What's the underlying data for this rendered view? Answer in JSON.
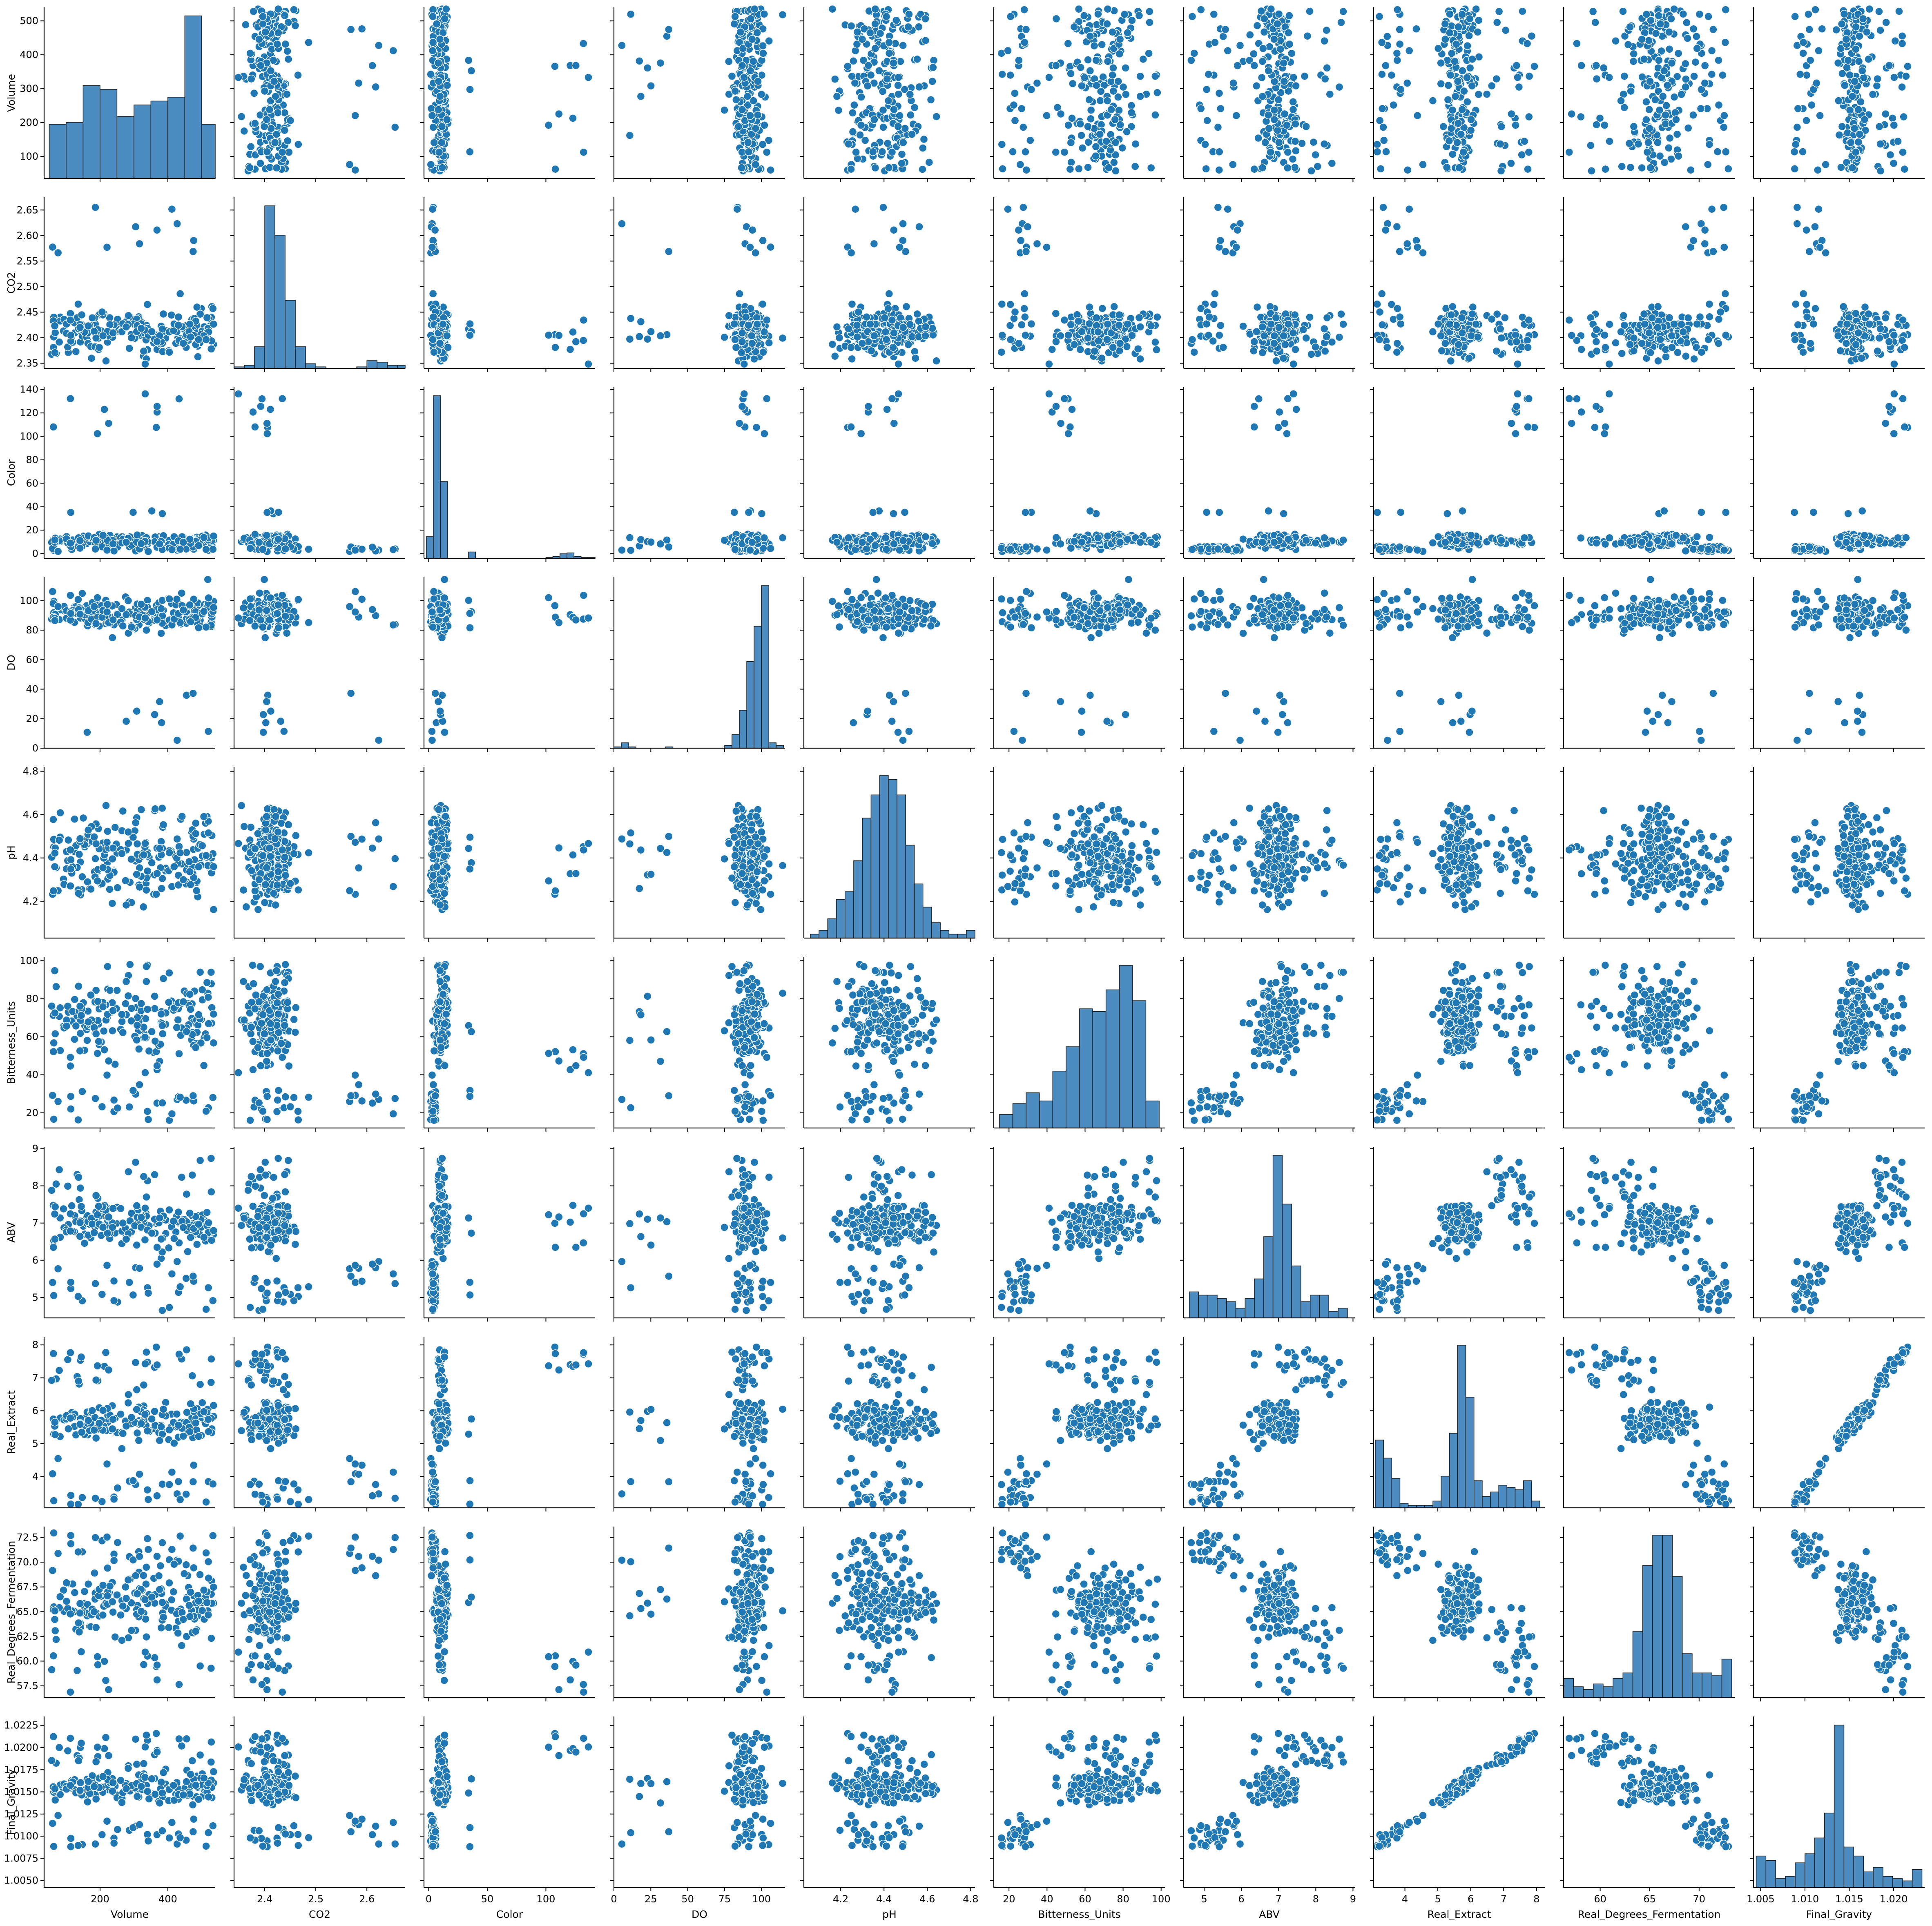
{
  "chart_data": {
    "type": "scatter",
    "subtype": "pairplot",
    "title": "",
    "point_color": "#1f77b4",
    "hist_color": "#4c8cc0",
    "variables": [
      "Volume",
      "CO2",
      "Color",
      "DO",
      "pH",
      "Bitterness_Units",
      "ABV",
      "Real_Extract",
      "Real_Degrees_Fermentation",
      "Final_Gravity"
    ],
    "axes": {
      "Volume": {
        "range": [
          35,
          540
        ],
        "ticks": [
          100,
          200,
          300,
          400,
          500
        ],
        "xticks": [
          200,
          400
        ],
        "tick_labels": [
          "100",
          "200",
          "300",
          "400",
          "500"
        ],
        "xtick_labels": [
          "200",
          "400"
        ]
      },
      "CO2": {
        "range": [
          2.34,
          2.675
        ],
        "ticks": [
          2.35,
          2.4,
          2.45,
          2.5,
          2.55,
          2.6,
          2.65
        ],
        "xticks": [
          2.4,
          2.5,
          2.6
        ],
        "tick_labels": [
          "2.35",
          "2.40",
          "2.45",
          "2.50",
          "2.55",
          "2.60",
          "2.65"
        ],
        "xtick_labels": [
          "2.4",
          "2.5",
          "2.6"
        ]
      },
      "Color": {
        "range": [
          -4,
          142
        ],
        "ticks": [
          0,
          20,
          40,
          60,
          80,
          100,
          120,
          140
        ],
        "xticks": [
          0,
          50,
          100
        ],
        "tick_labels": [
          "0",
          "20",
          "40",
          "60",
          "80",
          "100",
          "120",
          "140"
        ],
        "xtick_labels": [
          "0",
          "50",
          "100"
        ]
      },
      "DO": {
        "range": [
          0,
          116
        ],
        "ticks": [
          0,
          20,
          40,
          60,
          80,
          100
        ],
        "xticks": [
          0,
          25,
          50,
          75,
          100
        ],
        "tick_labels": [
          "0",
          "20",
          "40",
          "60",
          "80",
          "100"
        ],
        "xtick_labels": [
          "0",
          "25",
          "50",
          "75",
          "100"
        ]
      },
      "pH": {
        "range": [
          4.03,
          4.82
        ],
        "ticks": [
          4.2,
          4.4,
          4.6,
          4.8
        ],
        "xticks": [
          4.2,
          4.4,
          4.6,
          4.8
        ],
        "tick_labels": [
          "4.2",
          "4.4",
          "4.6",
          "4.8"
        ],
        "xtick_labels": [
          "4.2",
          "4.4",
          "4.6",
          "4.8"
        ]
      },
      "Bitterness_Units": {
        "range": [
          12,
          102
        ],
        "ticks": [
          20,
          40,
          60,
          80,
          100
        ],
        "xticks": [
          20,
          40,
          60,
          80,
          100
        ],
        "tick_labels": [
          "20",
          "40",
          "60",
          "80",
          "100"
        ],
        "xtick_labels": [
          "20",
          "40",
          "60",
          "80",
          "100"
        ]
      },
      "ABV": {
        "range": [
          4.45,
          9.05
        ],
        "ticks": [
          5,
          6,
          7,
          8,
          9
        ],
        "xticks": [
          5,
          6,
          7,
          8,
          9
        ],
        "tick_labels": [
          "5",
          "6",
          "7",
          "8",
          "9"
        ],
        "xtick_labels": [
          "5",
          "6",
          "7",
          "8",
          "9"
        ]
      },
      "Real_Extract": {
        "range": [
          3.05,
          8.25
        ],
        "ticks": [
          4,
          5,
          6,
          7,
          8
        ],
        "xticks": [
          4,
          5,
          6,
          7,
          8
        ],
        "tick_labels": [
          "4",
          "5",
          "6",
          "7",
          "8"
        ],
        "xtick_labels": [
          "4",
          "5",
          "6",
          "7",
          "8"
        ]
      },
      "Real_Degrees_Fermentation": {
        "range": [
          56.3,
          73.6
        ],
        "ticks": [
          57.5,
          60.0,
          62.5,
          65.0,
          67.5,
          70.0,
          72.5
        ],
        "xticks": [
          60,
          65,
          70
        ],
        "tick_labels": [
          "57.5",
          "60.0",
          "62.5",
          "65.0",
          "67.5",
          "70.0",
          "72.5"
        ],
        "xtick_labels": [
          "60",
          "65",
          "70"
        ]
      },
      "Final_Gravity": {
        "range": [
          1.0042,
          1.0235
        ],
        "ticks": [
          1.005,
          1.0075,
          1.01,
          1.0125,
          1.015,
          1.0175,
          1.02,
          1.0225
        ],
        "xticks": [
          1.005,
          1.01,
          1.015,
          1.02
        ],
        "tick_labels": [
          "1.0050",
          "1.0075",
          "1.0100",
          "1.0125",
          "1.0150",
          "1.0175",
          "1.0200",
          "1.0225"
        ],
        "xtick_labels": [
          "1.005",
          "1.010",
          "1.015",
          "1.020"
        ]
      }
    },
    "histograms": {
      "Volume": {
        "edges": [
          50,
          100,
          150,
          200,
          250,
          300,
          350,
          400,
          450,
          500,
          540
        ],
        "counts": [
          28,
          29,
          48,
          46,
          32,
          38,
          40,
          42,
          84,
          28
        ]
      },
      "CO2": {
        "edges": [
          2.34,
          2.36,
          2.38,
          2.4,
          2.42,
          2.44,
          2.46,
          2.48,
          2.5,
          2.52,
          2.54,
          2.56,
          2.58,
          2.6,
          2.62,
          2.64,
          2.66,
          2.675
        ],
        "counts": [
          1,
          2,
          14,
          105,
          86,
          44,
          14,
          3,
          1,
          0,
          0,
          0,
          1,
          5,
          4,
          2,
          2
        ]
      },
      "Color": {
        "edges": [
          -2,
          4,
          10,
          16,
          22,
          28,
          34,
          40,
          46,
          52,
          58,
          64,
          70,
          76,
          82,
          88,
          94,
          100,
          106,
          112,
          118,
          124,
          130,
          136,
          142
        ],
        "counts": [
          24,
          180,
          85,
          0,
          0,
          0,
          7,
          0,
          0,
          0,
          0,
          0,
          0,
          0,
          0,
          0,
          0,
          1,
          2,
          5,
          6,
          2,
          1,
          1
        ]
      },
      "DO": {
        "edges": [
          0,
          5,
          10,
          15,
          20,
          25,
          30,
          35,
          40,
          45,
          50,
          55,
          60,
          65,
          70,
          75,
          80,
          85,
          90,
          95,
          100,
          105,
          110,
          115
        ],
        "counts": [
          1,
          4,
          1,
          0,
          0,
          0,
          0,
          1,
          0,
          0,
          0,
          0,
          0,
          0,
          0,
          2,
          10,
          28,
          64,
          90,
          120,
          4,
          2
        ]
      },
      "pH": {
        "edges": [
          4.06,
          4.1,
          4.14,
          4.18,
          4.22,
          4.26,
          4.3,
          4.34,
          4.38,
          4.42,
          4.46,
          4.5,
          4.54,
          4.58,
          4.62,
          4.66,
          4.7,
          4.74,
          4.78,
          4.82
        ],
        "counts": [
          1,
          2,
          5,
          10,
          12,
          20,
          31,
          37,
          42,
          41,
          37,
          24,
          14,
          8,
          4,
          2,
          1,
          1,
          2
        ]
      },
      "Bitterness_Units": {
        "edges": [
          15,
          22,
          29,
          36,
          43,
          50,
          57,
          64,
          71,
          78,
          85,
          92,
          99
        ],
        "counts": [
          5,
          9,
          13,
          10,
          21,
          30,
          44,
          43,
          51,
          60,
          47,
          10
        ]
      },
      "ABV": {
        "edges": [
          4.6,
          4.85,
          5.1,
          5.35,
          5.6,
          5.85,
          6.1,
          6.35,
          6.6,
          6.85,
          7.1,
          7.35,
          7.6,
          7.85,
          8.1,
          8.35,
          8.6,
          8.85
        ],
        "counts": [
          8,
          7,
          7,
          6,
          5,
          3,
          6,
          12,
          25,
          50,
          35,
          16,
          5,
          7,
          7,
          2,
          3
        ]
      },
      "Real_Extract": {
        "edges": [
          3.1,
          3.35,
          3.6,
          3.85,
          4.1,
          4.35,
          4.6,
          4.85,
          5.1,
          5.35,
          5.6,
          5.85,
          6.1,
          6.35,
          6.6,
          6.85,
          7.1,
          7.35,
          7.6,
          7.85,
          8.1
        ],
        "counts": [
          30,
          22,
          13,
          2,
          1,
          1,
          1,
          3,
          14,
          33,
          72,
          49,
          12,
          5,
          7,
          10,
          9,
          8,
          12,
          3
        ]
      },
      "Real_Degrees_Fermentation": {
        "edges": [
          56.3,
          57.3,
          58.3,
          59.3,
          60.3,
          61.3,
          62.3,
          63.3,
          64.3,
          65.3,
          66.3,
          67.3,
          68.3,
          69.3,
          70.3,
          71.3,
          72.3,
          73.3
        ],
        "counts": [
          7,
          4,
          3,
          5,
          4,
          7,
          9,
          24,
          48,
          59,
          59,
          44,
          16,
          9,
          9,
          8,
          14
        ]
      },
      "Final_Gravity": {
        "edges": [
          1.0045,
          1.0056,
          1.0067,
          1.0078,
          1.0089,
          1.01,
          1.0111,
          1.0122,
          1.0133,
          1.0144,
          1.0155,
          1.0166,
          1.0177,
          1.0188,
          1.0199,
          1.021,
          1.0221,
          1.0232
        ],
        "counts": [
          14,
          12,
          4,
          5,
          11,
          15,
          22,
          33,
          72,
          18,
          14,
          7,
          9,
          5,
          4,
          3,
          8
        ]
      }
    }
  }
}
